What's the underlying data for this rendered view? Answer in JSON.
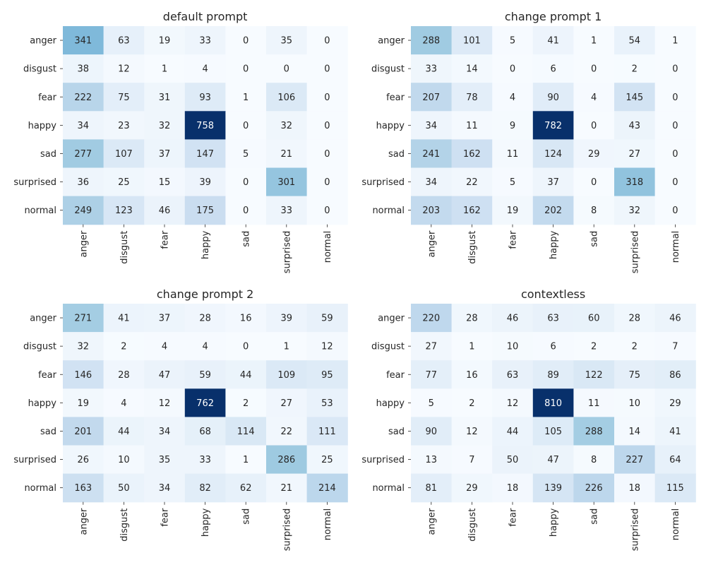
{
  "chart_data": [
    {
      "type": "heatmap",
      "title": "default prompt",
      "row_labels": [
        "anger",
        "disgust",
        "fear",
        "happy",
        "sad",
        "surprised",
        "normal"
      ],
      "col_labels": [
        "anger",
        "disgust",
        "fear",
        "happy",
        "sad",
        "surprised",
        "normal"
      ],
      "values": [
        [
          341,
          63,
          19,
          33,
          0,
          35,
          0
        ],
        [
          38,
          12,
          1,
          4,
          0,
          0,
          0
        ],
        [
          222,
          75,
          31,
          93,
          1,
          106,
          0
        ],
        [
          34,
          23,
          32,
          758,
          0,
          32,
          0
        ],
        [
          277,
          107,
          37,
          147,
          5,
          21,
          0
        ],
        [
          36,
          25,
          15,
          39,
          0,
          301,
          0
        ],
        [
          249,
          123,
          46,
          175,
          0,
          33,
          0
        ]
      ],
      "colormap": "Blues",
      "colorbar": false
    },
    {
      "type": "heatmap",
      "title": "change prompt 1",
      "row_labels": [
        "anger",
        "disgust",
        "fear",
        "happy",
        "sad",
        "surprised",
        "normal"
      ],
      "col_labels": [
        "anger",
        "disgust",
        "fear",
        "happy",
        "sad",
        "surprised",
        "normal"
      ],
      "values": [
        [
          288,
          101,
          5,
          41,
          1,
          54,
          1
        ],
        [
          33,
          14,
          0,
          6,
          0,
          2,
          0
        ],
        [
          207,
          78,
          4,
          90,
          4,
          145,
          0
        ],
        [
          34,
          11,
          9,
          782,
          0,
          43,
          0
        ],
        [
          241,
          162,
          11,
          124,
          29,
          27,
          0
        ],
        [
          34,
          22,
          5,
          37,
          0,
          318,
          0
        ],
        [
          203,
          162,
          19,
          202,
          8,
          32,
          0
        ]
      ],
      "colormap": "Blues",
      "colorbar": false
    },
    {
      "type": "heatmap",
      "title": "change prompt 2",
      "row_labels": [
        "anger",
        "disgust",
        "fear",
        "happy",
        "sad",
        "surprised",
        "normal"
      ],
      "col_labels": [
        "anger",
        "disgust",
        "fear",
        "happy",
        "sad",
        "surprised",
        "normal"
      ],
      "values": [
        [
          271,
          41,
          37,
          28,
          16,
          39,
          59
        ],
        [
          32,
          2,
          4,
          4,
          0,
          1,
          12
        ],
        [
          146,
          28,
          47,
          59,
          44,
          109,
          95
        ],
        [
          19,
          4,
          12,
          762,
          2,
          27,
          53
        ],
        [
          201,
          44,
          34,
          68,
          114,
          22,
          111
        ],
        [
          26,
          10,
          35,
          33,
          1,
          286,
          25
        ],
        [
          163,
          50,
          34,
          82,
          62,
          21,
          214
        ]
      ],
      "colormap": "Blues",
      "colorbar": false
    },
    {
      "type": "heatmap",
      "title": "contextless",
      "row_labels": [
        "anger",
        "disgust",
        "fear",
        "happy",
        "sad",
        "surprised",
        "normal"
      ],
      "col_labels": [
        "anger",
        "disgust",
        "fear",
        "happy",
        "sad",
        "surprised",
        "normal"
      ],
      "values": [
        [
          220,
          28,
          46,
          63,
          60,
          28,
          46
        ],
        [
          27,
          1,
          10,
          6,
          2,
          2,
          7
        ],
        [
          77,
          16,
          63,
          89,
          122,
          75,
          86
        ],
        [
          5,
          2,
          12,
          810,
          11,
          10,
          29
        ],
        [
          90,
          12,
          44,
          105,
          288,
          14,
          41
        ],
        [
          13,
          7,
          50,
          47,
          8,
          227,
          64
        ],
        [
          81,
          29,
          18,
          139,
          226,
          18,
          115
        ]
      ],
      "colormap": "Blues",
      "colorbar": false
    }
  ]
}
